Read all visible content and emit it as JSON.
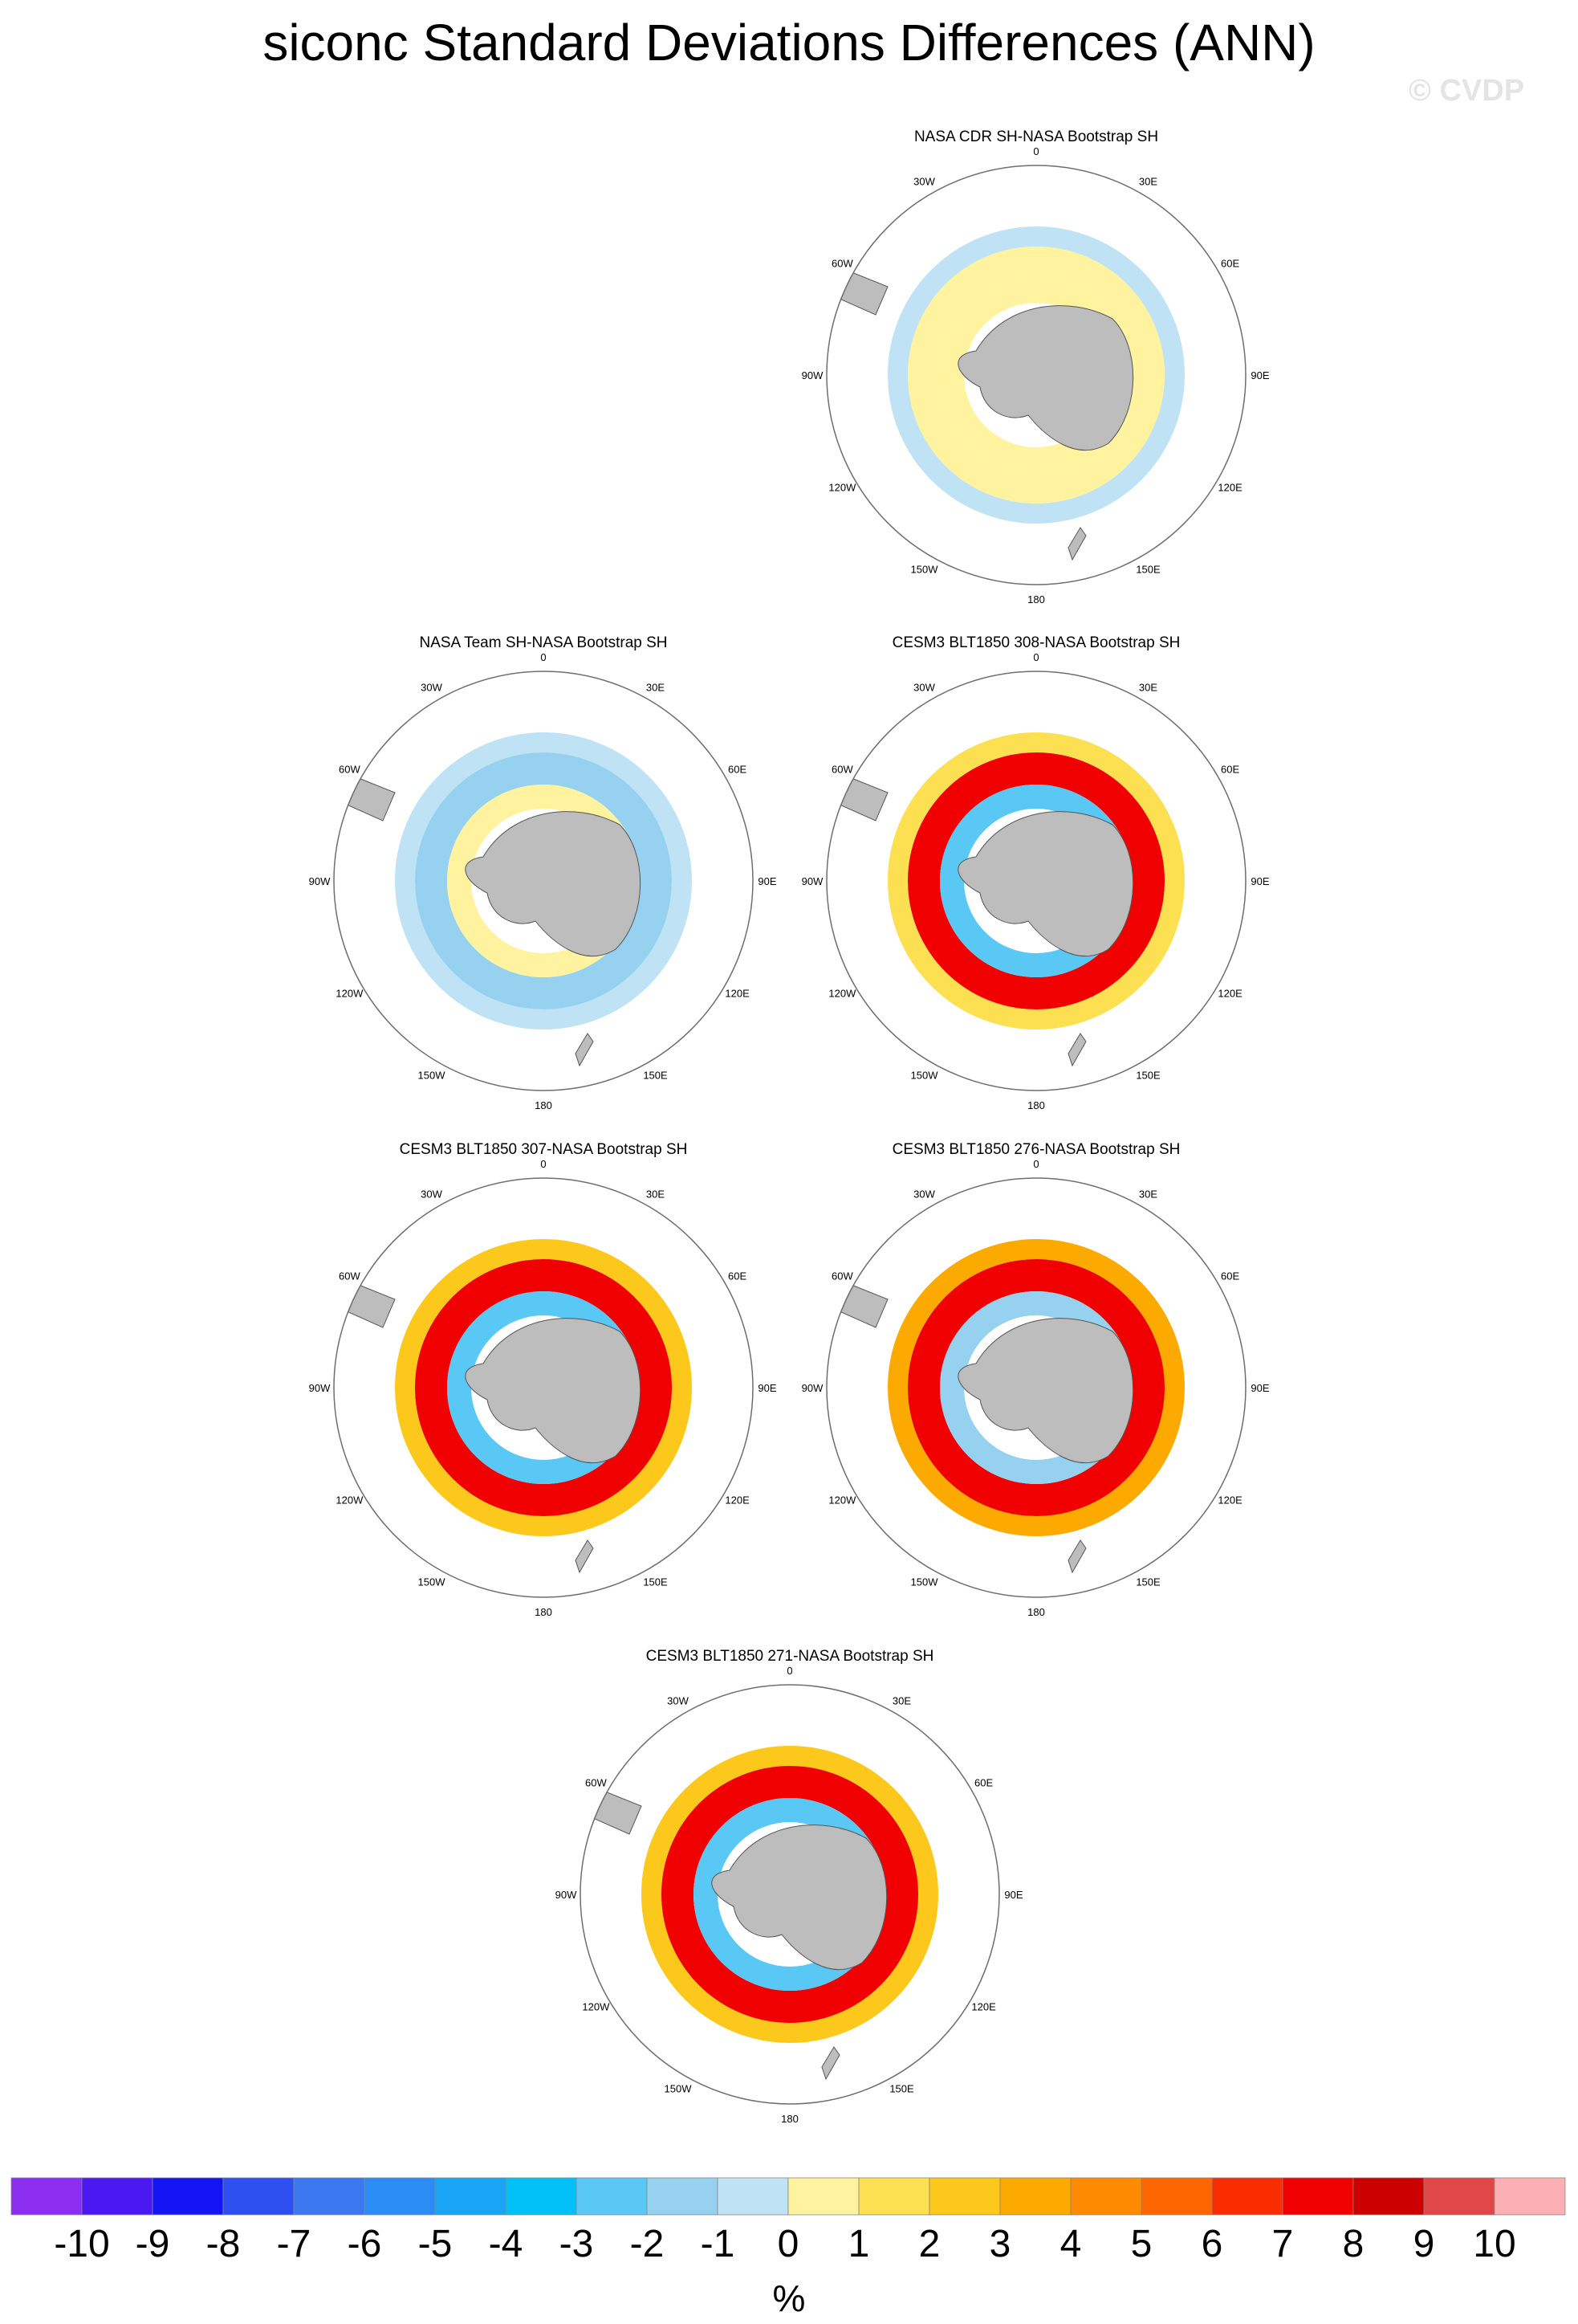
{
  "title": "siconc Standard Deviations Differences (ANN)",
  "copyright": "© CVDP",
  "chart_data": [
    {
      "type": "heatmap",
      "panel_title": "NASA CDR SH-NASA Bootstrap SH",
      "projection": "south polar stereographic",
      "longitude_labels": [
        "0",
        "30E",
        "60E",
        "90E",
        "120E",
        "150E",
        "180",
        "150W",
        "120W",
        "90W",
        "60W",
        "30W"
      ],
      "pattern_summary": "near-zero differences: mostly 0 to 1 over the Antarctic interior sea ice, -1 to 0 along the outer ice edge",
      "rings": [
        {
          "ring": "inner",
          "value": 0.5
        },
        {
          "ring": "middle",
          "value": 0.5
        },
        {
          "ring": "outer",
          "value": -0.5
        }
      ]
    },
    {
      "type": "heatmap",
      "panel_title": "NASA Team SH-NASA Bootstrap SH",
      "projection": "south polar stereographic",
      "longitude_labels": [
        "0",
        "30E",
        "60E",
        "90E",
        "120E",
        "150E",
        "180",
        "150W",
        "120W",
        "90W",
        "60W",
        "30W"
      ],
      "pattern_summary": "mostly -1 to 0 across the ice zone, -2 to -1 band in mid ring, small 0 to 1 patches near the coast",
      "rings": [
        {
          "ring": "inner",
          "value": 0.5
        },
        {
          "ring": "middle",
          "value": -1.5
        },
        {
          "ring": "outer",
          "value": -0.5
        }
      ]
    },
    {
      "type": "heatmap",
      "panel_title": "CESM3 BLT1850 308-NASA Bootstrap SH",
      "projection": "south polar stereographic",
      "longitude_labels": [
        "0",
        "30E",
        "60E",
        "90E",
        "120E",
        "150E",
        "180",
        "150W",
        "120W",
        "90W",
        "60W",
        "30W"
      ],
      "pattern_summary": "strong positive (6 to 10) band in Bellingshausen/Amundsen and East Antarctic sectors, negative (-2 to -5) patches near the coast",
      "rings": [
        {
          "ring": "inner",
          "value": -2.5
        },
        {
          "ring": "middle",
          "value": 7.5
        },
        {
          "ring": "outer",
          "value": 1.5
        }
      ]
    },
    {
      "type": "heatmap",
      "panel_title": "CESM3 BLT1850 307-NASA Bootstrap SH",
      "projection": "south polar stereographic",
      "longitude_labels": [
        "0",
        "30E",
        "60E",
        "90E",
        "120E",
        "150E",
        "180",
        "150W",
        "120W",
        "90W",
        "60W",
        "30W"
      ],
      "pattern_summary": "positive (4 to 10) ring with maximum in the Amundsen-Bellingshausen sector, negative values in the Ross and Weddell coastal regions",
      "rings": [
        {
          "ring": "inner",
          "value": -2.5
        },
        {
          "ring": "middle",
          "value": 7.5
        },
        {
          "ring": "outer",
          "value": 2.5
        }
      ]
    },
    {
      "type": "heatmap",
      "panel_title": "CESM3 BLT1850 276-NASA Bootstrap SH",
      "projection": "south polar stereographic",
      "longitude_labels": [
        "0",
        "30E",
        "60E",
        "90E",
        "120E",
        "150E",
        "180",
        "150W",
        "120W",
        "90W",
        "60W",
        "30W"
      ],
      "pattern_summary": "broad positive (3 to 10) ring around Antarctica, strongest in the Amundsen-Bellingshausen sector; weak negatives near the Antarctic Peninsula",
      "rings": [
        {
          "ring": "inner",
          "value": -1.5
        },
        {
          "ring": "middle",
          "value": 7.5
        },
        {
          "ring": "outer",
          "value": 3.5
        }
      ]
    },
    {
      "type": "heatmap",
      "panel_title": "CESM3 BLT1850 271-NASA Bootstrap SH",
      "projection": "south polar stereographic",
      "longitude_labels": [
        "0",
        "30E",
        "60E",
        "90E",
        "120E",
        "150E",
        "180",
        "150W",
        "120W",
        "90W",
        "60W",
        "30W"
      ],
      "pattern_summary": "positive (5 to 10) band at the outer ice edge, mixed negative (-1 to -4) values closer to the coast in the Ross/Amundsen sectors",
      "rings": [
        {
          "ring": "inner",
          "value": -2.5
        },
        {
          "ring": "middle",
          "value": 7.5
        },
        {
          "ring": "outer",
          "value": 2.5
        }
      ]
    }
  ],
  "colorbar": {
    "unit": "%",
    "labels": [
      "-10",
      "-9",
      "-8",
      "-7",
      "-6",
      "-5",
      "-4",
      "-3",
      "-2",
      "-1",
      "0",
      "1",
      "2",
      "3",
      "4",
      "5",
      "6",
      "7",
      "8",
      "9",
      "10"
    ],
    "colors": [
      "#8b2ef0",
      "#4a18f0",
      "#1414f5",
      "#2e4ff0",
      "#3c78f0",
      "#2c8cf5",
      "#1aa4f5",
      "#00c0f8",
      "#5ac8f5",
      "#96d2f0",
      "#bfe2f5",
      "#fff3a0",
      "#fde052",
      "#fdc81c",
      "#fdaa00",
      "#fd8a00",
      "#fd6600",
      "#fa2d00",
      "#f00000",
      "#cc0000",
      "#e04848",
      "#fdb0b4"
    ]
  }
}
